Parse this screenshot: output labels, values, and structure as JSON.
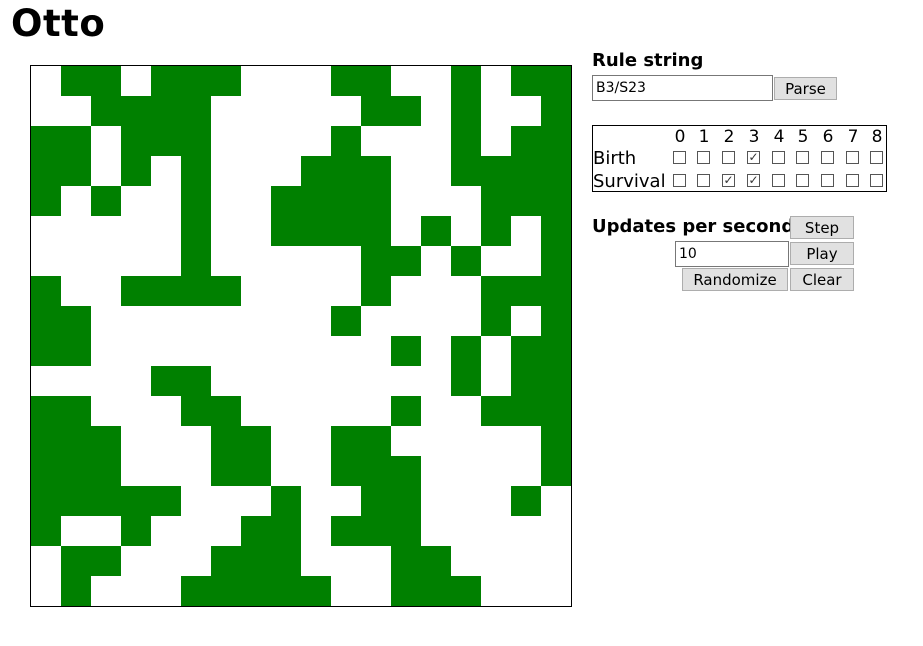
{
  "title": "Otto",
  "board": {
    "rows": [
      "011011100011001011",
      "001111000001101001",
      "110111000010001011",
      "110101000111001111",
      "101001001111000111",
      "000001001111010101",
      "000001000001101001",
      "100111100001000111",
      "110000000010000101",
      "110000000000101011",
      "000011000000001011",
      "110001100000100111",
      "111000110011000001",
      "111000110011100001",
      "111110001001100010",
      "100100011011100000",
      "011000111000110000",
      "010001111100111000"
    ]
  },
  "rule_section": {
    "heading": "Rule string",
    "input_value": "B3/S23",
    "parse_label": "Parse"
  },
  "rule_table": {
    "digits": [
      "0",
      "1",
      "2",
      "3",
      "4",
      "5",
      "6",
      "7",
      "8"
    ],
    "birth_label": "Birth",
    "survival_label": "Survival",
    "birth_checked": [
      false,
      false,
      false,
      true,
      false,
      false,
      false,
      false,
      false
    ],
    "survival_checked": [
      false,
      false,
      true,
      true,
      false,
      false,
      false,
      false,
      false
    ]
  },
  "controls": {
    "ups_heading": "Updates per second",
    "ups_value": "10",
    "step_label": "Step",
    "play_label": "Play",
    "randomize_label": "Randomize",
    "clear_label": "Clear"
  },
  "colors": {
    "alive": "#008000",
    "dead": "#ffffff"
  }
}
